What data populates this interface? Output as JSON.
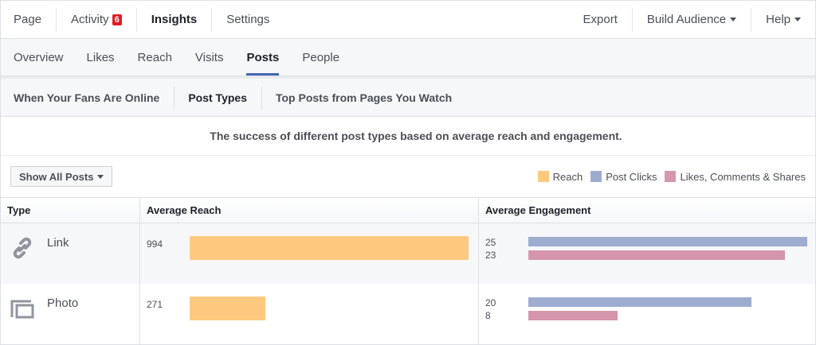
{
  "topnav": {
    "page": "Page",
    "activity": "Activity",
    "activity_badge": "6",
    "insights": "Insights",
    "settings": "Settings",
    "export": "Export",
    "build_audience": "Build Audience",
    "help": "Help"
  },
  "subnav": [
    "Overview",
    "Likes",
    "Reach",
    "Visits",
    "Posts",
    "People"
  ],
  "tabs": [
    "When Your Fans Are Online",
    "Post Types",
    "Top Posts from Pages You Watch"
  ],
  "description": "The success of different post types based on average reach and engagement.",
  "filter": {
    "label": "Show All Posts"
  },
  "legend": [
    {
      "label": "Reach",
      "color": "#fec97f"
    },
    {
      "label": "Post Clicks",
      "color": "#9eacd0"
    },
    {
      "label": "Likes, Comments & Shares",
      "color": "#d595ad"
    }
  ],
  "table": {
    "headers": [
      "Type",
      "Average Reach",
      "Average Engagement"
    ],
    "reach_max": 994,
    "engagement_max": 25,
    "rows": [
      {
        "type": "Link",
        "icon": "link-icon",
        "reach": "994",
        "post_clicks": "25",
        "likes_comments_shares": "23"
      },
      {
        "type": "Photo",
        "icon": "photo-icon",
        "reach": "271",
        "post_clicks": "20",
        "likes_comments_shares": "8"
      }
    ]
  }
}
